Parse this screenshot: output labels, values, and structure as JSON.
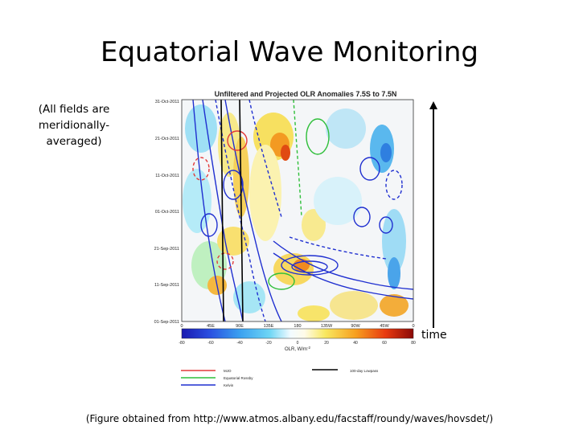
{
  "slide": {
    "title": "Equatorial Wave Monitoring",
    "note_lines": [
      "(All fields are",
      "meridionally-",
      "averaged)"
    ],
    "time_label": "time",
    "caption": "(Figure obtained from http://www.atmos.albany.edu/facstaff/roundy/waves/hovsdet/)"
  },
  "figure": {
    "title": "Unfiltered and Projected OLR Anomalies 7.5S to 7.5N",
    "y_tick_labels": [
      "31-Oct-2011",
      "21-Oct-2011",
      "11-Oct-2011",
      "01-Oct-2011",
      "21-Sep-2011",
      "11-Sep-2011",
      "01-Sep-2011"
    ],
    "x_tick_labels": [
      "0",
      "45E",
      "90E",
      "135E",
      "180",
      "135W",
      "90W",
      "45W",
      "0"
    ],
    "colorbar_ticks": [
      "-80",
      "-60",
      "-40",
      "-20",
      "0",
      "20",
      "40",
      "60",
      "80"
    ],
    "colorbar_label": "OLR, W/m",
    "colorbar_label_sup": "-2",
    "legend": {
      "mjo": "MJO",
      "rossby": "Equatorial Rossby",
      "kelvin": "Kelvin",
      "lowpass": "100-day Lowpass"
    },
    "colors": {
      "mjo": "#e23a3a",
      "rossby": "#2fbf3a",
      "kelvin": "#1f2fd0",
      "lowpass": "#000000"
    }
  }
}
